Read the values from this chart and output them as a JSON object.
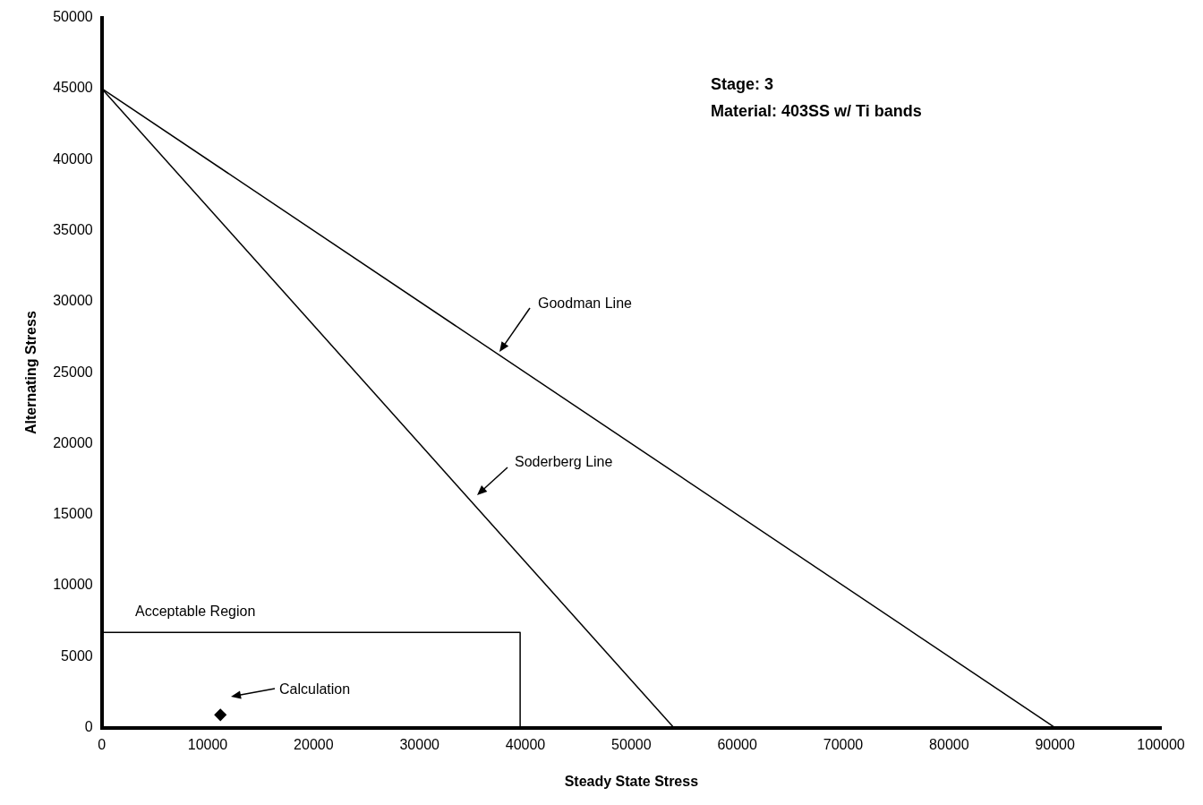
{
  "chart_data": {
    "type": "line",
    "xlabel": "Steady State Stress",
    "ylabel": "Alternating Stress",
    "xlim": [
      0,
      100000
    ],
    "xticks": [
      0,
      10000,
      20000,
      30000,
      40000,
      50000,
      60000,
      70000,
      80000,
      90000,
      100000
    ],
    "ylim": [
      0,
      50000
    ],
    "yticks": [
      0,
      5000,
      10000,
      15000,
      20000,
      25000,
      30000,
      35000,
      40000,
      45000,
      50000
    ],
    "grid": false,
    "legend": false,
    "marker": "none",
    "line_style": "solid",
    "annotations": [
      "Stage: 3",
      "Material: 403SS w/ Ti bands",
      "Goodman Line",
      "Soderberg Line",
      "Acceptable Region",
      "Calculation"
    ],
    "series": [
      {
        "color": "#000000",
        "x": [
          0,
          90000
        ],
        "values": [
          45000,
          0
        ]
      },
      {
        "color": "#000000",
        "x": [
          0,
          54000
        ],
        "values": [
          45000,
          0
        ]
      },
      {
        "color": "#000000",
        "x": [
          0,
          39500,
          39500
        ],
        "values": [
          6700,
          6700,
          0
        ]
      },
      {
        "type": "scatter",
        "color": "#000000",
        "marker": "diamond",
        "x": [
          11200
        ],
        "values": [
          900
        ]
      }
    ]
  }
}
